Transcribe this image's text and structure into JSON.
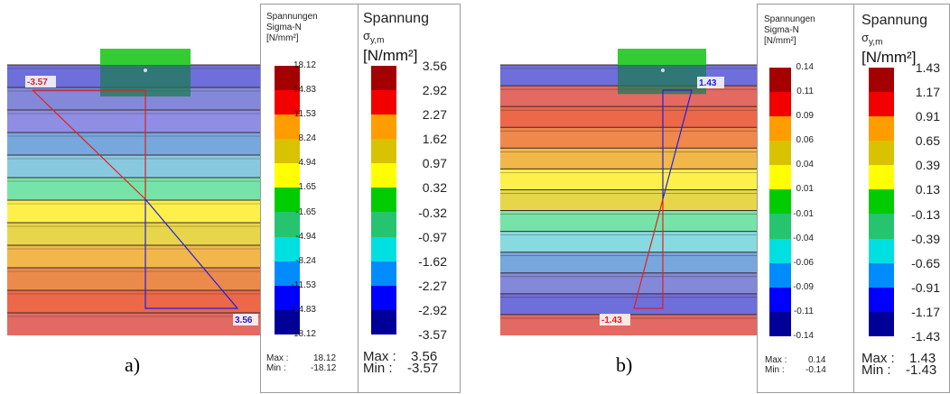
{
  "figures": [
    {
      "label": "a)",
      "value_top": "-3.57",
      "value_bottom": "3.56",
      "bands": [
        "#6e6fdb",
        "#8488d8",
        "#8f8de4",
        "#77a7dc",
        "#88c9e0",
        "#76e4a8",
        "#fef04a",
        "#e8d64a",
        "#f2b74b",
        "#ec8a4b",
        "#ec6848",
        "#e26a62"
      ],
      "legend1": {
        "title": "Spannungen\nSigma-N\n[N/mm²]",
        "ticks": [
          "18.12",
          "14.83",
          "11.53",
          "8.24",
          "4.94",
          "1.65",
          "-1.65",
          "-4.94",
          "-8.24",
          "-11.53",
          "-14.83",
          "-18.12"
        ],
        "max_label": "Max :",
        "max_value": "18.12",
        "min_label": "Min :",
        "min_value": "-18.12"
      },
      "legend2": {
        "title": "Spannung",
        "symbol": "σ",
        "subscript": "y,m",
        "unit": "[N/mm²]",
        "ticks": [
          "3.56",
          "2.92",
          "2.27",
          "1.62",
          "0.97",
          "0.32",
          "-0.32",
          "-0.97",
          "-1.62",
          "-2.27",
          "-2.92",
          "-3.57"
        ],
        "max_label": "Max :",
        "max_value": "3.56",
        "min_label": "Min :",
        "min_value": "-3.57"
      }
    },
    {
      "label": "b)",
      "value_top": "1.43",
      "value_bottom": "-1.43",
      "bands": [
        "#6e6fdb",
        "#e26a62",
        "#ec6848",
        "#f0884b",
        "#f2b74b",
        "#fef04a",
        "#e8d64a",
        "#76e4a8",
        "#88d9e0",
        "#77a7dc",
        "#8488d8",
        "#6e6fdb",
        "#e26a62"
      ],
      "legend1": {
        "title": "Spannungen\nSigma-N\n[N/mm²]",
        "ticks": [
          "0.14",
          "0.11",
          "0.09",
          "0.06",
          "0.04",
          "0.01",
          "-0.01",
          "-0.04",
          "-0.06",
          "-0.09",
          "-0.11",
          "-0.14"
        ],
        "max_label": "Max :",
        "max_value": "0.14",
        "min_label": "Min :",
        "min_value": "-0.14"
      },
      "legend2": {
        "title": "Spannung",
        "symbol": "σ",
        "subscript": "y,m",
        "unit": "[N/mm²]",
        "ticks": [
          "1.43",
          "1.17",
          "0.91",
          "0.65",
          "0.39",
          "0.13",
          "-0.13",
          "-0.39",
          "-0.65",
          "-0.91",
          "-1.17",
          "-1.43"
        ],
        "max_label": "Max :",
        "max_value": "1.43",
        "min_label": "Min :",
        "min_value": "-1.43"
      }
    }
  ],
  "scale_colors": [
    "#a50000",
    "#f20000",
    "#ff9c00",
    "#d9c200",
    "#ffff00",
    "#00cc00",
    "#27c46f",
    "#00e0e0",
    "#008cff",
    "#0000ff",
    "#000099"
  ],
  "colors": {
    "load_plate": "#33cc33",
    "tension_line": "#e02020",
    "compression_line": "#2020e0",
    "seam": "#3a2a2a"
  }
}
